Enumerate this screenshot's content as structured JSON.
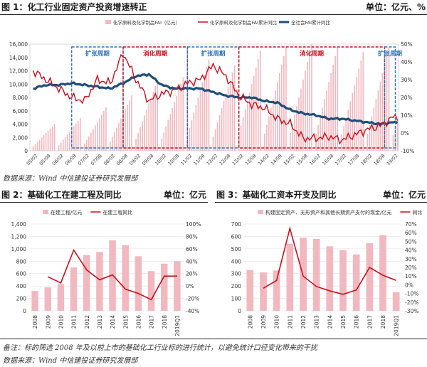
{
  "figure1": {
    "title": "图 1：化工行业固定资产投资增速转正",
    "unit": "单位：亿元、%",
    "source": "数据来源：Wind  中信建投证券研究发展部"
  },
  "figure2": {
    "title": "图 2：基础化工在建工程及同比",
    "unit": "单位：亿元"
  },
  "figure3": {
    "title": "图 3：基础化工资本开支及同比",
    "unit": "单位：亿元"
  },
  "note": "备注：标的筛选 2008 年及以前上市的基础化工行业标的进行统计，以避免统计口径变化带来的干扰",
  "bottom_source": "数据来源：Wind  中信建投证券研究发展部",
  "colors": {
    "pink_bar": "#f2b8bf",
    "red": "#c8101e",
    "navy": "#1f4e79",
    "blue_dash": "#2e75b6"
  },
  "chart_data": [
    {
      "type": "bar+line",
      "legend": [
        "化学原料及化学制品FAI（亿元）",
        "化学原料及化学制品FAI累计同比",
        "全社会FAI累计同比"
      ],
      "legend_position": "top",
      "y_left_ticks": [
        "0",
        "2,000",
        "4,000",
        "6,000",
        "8,000",
        "10,000",
        "12,000",
        "14,000",
        "16,000"
      ],
      "y_left_range": [
        0,
        16000
      ],
      "y_right_ticks": [
        "-10%",
        "0%",
        "10%",
        "20%",
        "30%",
        "40%",
        "50%"
      ],
      "y_right_range": [
        -10,
        50
      ],
      "x_tick_labels": [
        "05/02",
        "05/08",
        "06/02",
        "06/08",
        "07/02",
        "07/08",
        "08/02",
        "08/08",
        "09/02",
        "09/08",
        "10/02",
        "10/08",
        "11/02",
        "11/08",
        "12/02",
        "12/08",
        "13/02",
        "13/08",
        "14/02",
        "14/08",
        "15/02",
        "15/08",
        "16/02",
        "16/08",
        "17/02",
        "17/08",
        "18/02",
        "18/08",
        "19/02"
      ],
      "periods": [
        {
          "label": "扩张周期",
          "start": "06/08",
          "end": "08/08"
        },
        {
          "label": "消化周期",
          "start": "08/08",
          "end": "11/02"
        },
        {
          "label": "扩张周期",
          "start": "11/02",
          "end": "13/02"
        },
        {
          "label": "消化周期",
          "start": "13/02",
          "end": "18/10"
        },
        {
          "label": "扩张周期",
          "start": "18/10",
          "end": "19/03"
        }
      ],
      "bar_annual_peaks": [
        {
          "year": "2005",
          "value": 4000
        },
        {
          "year": "2006",
          "value": 4900
        },
        {
          "year": "2007",
          "value": 6500
        },
        {
          "year": "2008",
          "value": 8300
        },
        {
          "year": "2009",
          "value": 10600
        },
        {
          "year": "2010",
          "value": 11000
        },
        {
          "year": "2011",
          "value": 13700
        },
        {
          "year": "2012",
          "value": 12800
        },
        {
          "year": "2013",
          "value": 15000
        },
        {
          "year": "2014",
          "value": 15500
        },
        {
          "year": "2015",
          "value": 16000
        },
        {
          "year": "2016",
          "value": 15500
        },
        {
          "year": "2017",
          "value": 14800
        },
        {
          "year": "2018",
          "value": 15500
        },
        {
          "year": "2019",
          "value": 3600
        }
      ],
      "series": [
        {
          "name": "化学原料及化学制品FAI累计同比",
          "x": [
            "05/02",
            "05/08",
            "06/02",
            "06/08",
            "07/02",
            "07/08",
            "08/02",
            "08/08",
            "09/02",
            "09/08",
            "10/02",
            "10/08",
            "11/02",
            "11/08",
            "12/02",
            "12/08",
            "13/02",
            "13/08",
            "14/02",
            "14/08",
            "15/02",
            "15/08",
            "16/02",
            "16/08",
            "17/02",
            "17/08",
            "18/02",
            "18/08",
            "19/02"
          ],
          "values": [
            35,
            30,
            25,
            20,
            18,
            30,
            28,
            45,
            30,
            18,
            22,
            24,
            28,
            30,
            38,
            32,
            21,
            16,
            14,
            8,
            5,
            -3,
            -3,
            -2,
            -4,
            -1,
            2,
            4,
            9
          ]
        },
        {
          "name": "全社会FAI累计同比",
          "x": [
            "05/02",
            "05/08",
            "06/02",
            "06/08",
            "07/02",
            "07/08",
            "08/02",
            "08/08",
            "09/02",
            "09/08",
            "10/02",
            "10/08",
            "11/02",
            "11/08",
            "12/02",
            "12/08",
            "13/02",
            "13/08",
            "14/02",
            "14/08",
            "15/02",
            "15/08",
            "16/02",
            "16/08",
            "17/02",
            "17/08",
            "18/02",
            "18/08",
            "19/02"
          ],
          "values": [
            25,
            27,
            27,
            28,
            27,
            26,
            25,
            28,
            32,
            33,
            27,
            25,
            25,
            25,
            23,
            21,
            20,
            20,
            18,
            17,
            13,
            11,
            10,
            8,
            8,
            7,
            6,
            5,
            6
          ]
        }
      ]
    },
    {
      "type": "bar+line",
      "legend": [
        "在建工程/亿元",
        "在建工程同比"
      ],
      "legend_position": "top",
      "categories": [
        "2008",
        "2009",
        "2010",
        "2011",
        "2012",
        "2013",
        "2014",
        "2015",
        "2016",
        "2017",
        "2018",
        "2019Q1"
      ],
      "y_left_ticks": [
        "0",
        "200",
        "400",
        "600",
        "800",
        "1,000",
        "1,200",
        "1,400"
      ],
      "y_left_range": [
        0,
        1400
      ],
      "y_right_ticks": [
        "-40%",
        "-20%",
        "0%",
        "20%",
        "40%",
        "60%",
        "80%",
        "100%"
      ],
      "y_right_range": [
        -40,
        100
      ],
      "series": [
        {
          "name": "在建工程/亿元",
          "values": [
            320,
            380,
            430,
            700,
            900,
            950,
            1140,
            1060,
            880,
            640,
            760,
            800
          ]
        },
        {
          "name": "在建工程同比",
          "values": [
            null,
            15,
            5,
            58,
            26,
            10,
            18,
            -5,
            -12,
            -22,
            16,
            16
          ]
        }
      ]
    },
    {
      "type": "bar+line",
      "legend": [
        "构建固定资产、无形资产和其他长期资产支付的现金/亿元",
        "同比"
      ],
      "legend_position": "top",
      "categories": [
        "2008",
        "2009",
        "2010",
        "2011",
        "2012",
        "2013",
        "2014",
        "2015",
        "2016",
        "2017",
        "2018",
        "2019Q1"
      ],
      "y_left_ticks": [
        "0",
        "100",
        "200",
        "300",
        "400",
        "500",
        "600",
        "700"
      ],
      "y_left_range": [
        0,
        700
      ],
      "y_right_ticks": [
        "-30%",
        "-20%",
        "-10%",
        "0%",
        "10%",
        "20%",
        "30%",
        "40%",
        "50%",
        "60%",
        "70%"
      ],
      "y_right_range": [
        -30,
        70
      ],
      "series": [
        {
          "name": "构建固定资产、无形资产和其他长期资产支付的现金/亿元",
          "values": [
            330,
            310,
            325,
            540,
            590,
            580,
            520,
            490,
            455,
            545,
            610,
            150
          ]
        },
        {
          "name": "同比",
          "values": [
            null,
            -4,
            5,
            65,
            10,
            -2,
            -7,
            -11,
            -6,
            20,
            11,
            5
          ]
        }
      ]
    }
  ]
}
